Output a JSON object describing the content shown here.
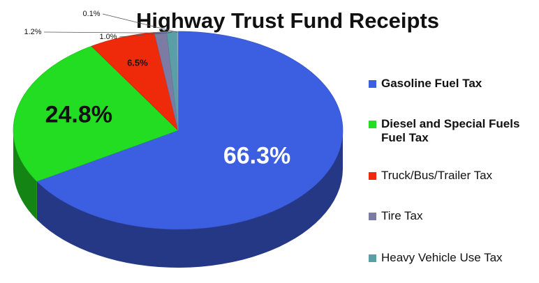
{
  "chart_data": {
    "type": "pie",
    "title": "Highway Trust Fund Receipts",
    "categories": [
      "Gasoline Fuel Tax",
      "Diesel and Special Fuels Fuel Tax",
      "Truck/Bus/Trailer Tax",
      "Tire Tax",
      "Heavy Vehicle Use Tax",
      null
    ],
    "values": [
      66.3,
      24.8,
      6.5,
      1.2,
      1.0,
      0.1
    ],
    "value_labels": [
      "66.3%",
      "24.8%",
      "6.5%",
      "1.2%",
      "1.0%",
      "0.1%"
    ],
    "colors": [
      "#3c5ee0",
      "#22dd22",
      "#ee2a0a",
      "#7b7ba3",
      "#5a9ea6",
      "#9ab8d0"
    ],
    "legend": "right"
  }
}
